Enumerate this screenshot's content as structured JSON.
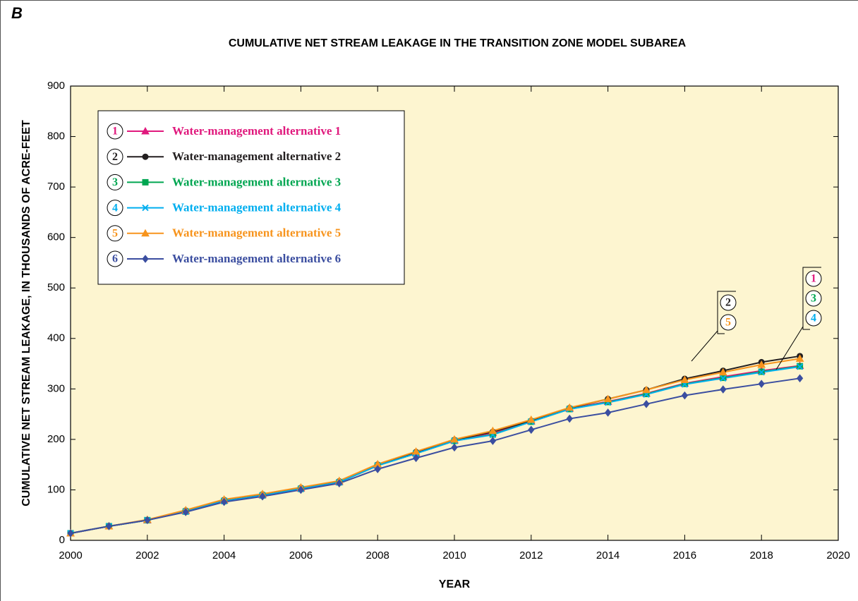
{
  "chart_data": {
    "type": "line",
    "panel_label": "B",
    "title": "CUMULATIVE NET STREAM LEAKAGE IN THE TRANSITION ZONE MODEL SUBAREA",
    "x_label": "YEAR",
    "y_label": "CUMULATIVE NET STREAM LEAKAGE, IN THOUSANDS OF ACRE-FEET",
    "x": [
      2000,
      2001,
      2002,
      2003,
      2004,
      2005,
      2006,
      2007,
      2008,
      2009,
      2010,
      2011,
      2012,
      2013,
      2014,
      2015,
      2016,
      2017,
      2018,
      2019
    ],
    "xlim": [
      2000,
      2020
    ],
    "xticks": [
      2000,
      2002,
      2004,
      2006,
      2008,
      2010,
      2012,
      2014,
      2016,
      2018,
      2020
    ],
    "ylim": [
      0,
      900
    ],
    "yticks": [
      0,
      100,
      200,
      300,
      400,
      500,
      600,
      700,
      800,
      900
    ],
    "background": "#fdf5d0",
    "series": [
      {
        "name": "Water-management alternative 1",
        "badge": "1",
        "color": "#e0197d",
        "marker": "triangle",
        "values": [
          14,
          28,
          40,
          58,
          79,
          90,
          103,
          116,
          149,
          173,
          198,
          213,
          236,
          261,
          275,
          291,
          311,
          324,
          336,
          346
        ]
      },
      {
        "name": "Water-management alternative 2",
        "badge": "2",
        "color": "#231f20",
        "marker": "circle",
        "values": [
          14,
          28,
          40,
          59,
          80,
          91,
          104,
          117,
          150,
          175,
          199,
          215,
          237,
          262,
          280,
          298,
          320,
          336,
          353,
          365
        ]
      },
      {
        "name": "Water-management alternative 3",
        "badge": "3",
        "color": "#00a651",
        "marker": "square",
        "values": [
          14,
          28,
          40,
          57,
          78,
          89,
          102,
          115,
          148,
          172,
          197,
          210,
          235,
          260,
          274,
          290,
          310,
          322,
          334,
          345
        ]
      },
      {
        "name": "Water-management alternative 4",
        "badge": "4",
        "color": "#00aeef",
        "marker": "x",
        "values": [
          14,
          28,
          40,
          57,
          78,
          89,
          102,
          115,
          148,
          172,
          197,
          209,
          235,
          260,
          273,
          289,
          309,
          321,
          333,
          344
        ]
      },
      {
        "name": "Water-management alternative 5",
        "badge": "5",
        "color": "#f7941d",
        "marker": "triangle",
        "values": [
          14,
          28,
          41,
          60,
          81,
          92,
          105,
          118,
          151,
          176,
          200,
          217,
          239,
          263,
          280,
          298,
          318,
          333,
          348,
          360
        ]
      },
      {
        "name": "Water-management alternative 6",
        "badge": "6",
        "color": "#3b4ea0",
        "marker": "diamond",
        "values": [
          14,
          28,
          40,
          56,
          76,
          87,
          100,
          113,
          141,
          163,
          184,
          197,
          219,
          241,
          253,
          270,
          287,
          299,
          310,
          321
        ]
      }
    ],
    "annotations": [
      {
        "labels": [
          "2",
          "5"
        ]
      },
      {
        "labels": [
          "1",
          "3",
          "4"
        ]
      }
    ]
  }
}
